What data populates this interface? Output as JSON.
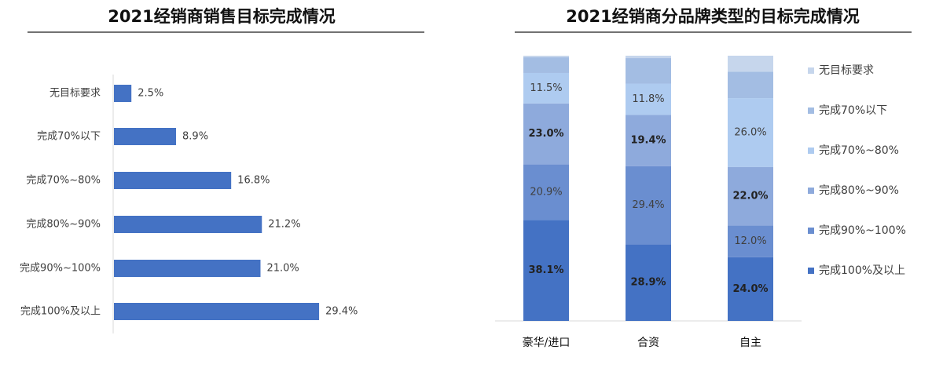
{
  "chart_data": [
    {
      "type": "hbar",
      "title": "2021经销商销售目标完成情况",
      "categories": [
        "无目标要求",
        "完成70%以下",
        "完成70%~80%",
        "完成80%~90%",
        "完成90%~100%",
        "完成100%及以上"
      ],
      "values": [
        2.5,
        8.9,
        16.8,
        21.2,
        21.0,
        29.4
      ],
      "value_labels": [
        "2.5%",
        "8.9%",
        "16.8%",
        "21.2%",
        "21.0%",
        "29.4%"
      ],
      "color": "#4472c4"
    },
    {
      "type": "stacked_bar",
      "title": "2021经销商分品牌类型的目标完成情况",
      "categories": [
        "豪华/进口",
        "合资",
        "自主"
      ],
      "series": [
        {
          "name": "完成100%及以上",
          "color": "#4472c4",
          "bold": true,
          "values": [
            38.1,
            28.9,
            24.0
          ],
          "value_labels": [
            "38.1%",
            "28.9%",
            "24.0%"
          ]
        },
        {
          "name": "完成90%~100%",
          "color": "#6a8ed0",
          "bold": false,
          "values": [
            20.9,
            29.4,
            12.0
          ],
          "value_labels": [
            "20.9%",
            "29.4%",
            "12.0%"
          ]
        },
        {
          "name": "完成80%~90%",
          "color": "#8eaadc",
          "bold": true,
          "values": [
            23.0,
            19.4,
            22.0
          ],
          "value_labels": [
            "23.0%",
            "19.4%",
            "22.0%"
          ]
        },
        {
          "name": "完成70%~80%",
          "color": "#aecbf0",
          "bold": false,
          "values": [
            11.5,
            11.8,
            26.0
          ],
          "value_labels": [
            "11.5%",
            "11.8%",
            "26.0%"
          ]
        },
        {
          "name": "完成70%以下",
          "color": "#a3bde3",
          "bold": false,
          "values": [
            5.9,
            9.6,
            10.0
          ],
          "value_labels": [
            null,
            null,
            null
          ]
        },
        {
          "name": "无目标要求",
          "color": "#c6d6ec",
          "bold": false,
          "values": [
            0.6,
            0.9,
            6.0
          ],
          "value_labels": [
            null,
            null,
            null
          ]
        }
      ]
    }
  ]
}
